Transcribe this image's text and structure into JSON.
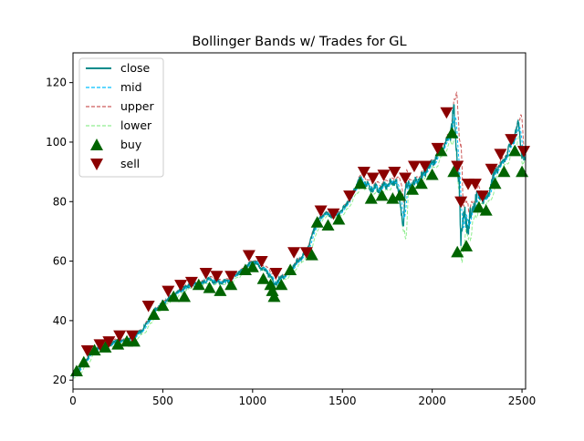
{
  "chart_data": {
    "type": "line",
    "title": "Bollinger Bands w/ Trades for GL",
    "xlabel": "",
    "ylabel": "",
    "xlim": [
      0,
      2520
    ],
    "ylim": [
      17,
      130
    ],
    "x_ticks": [
      0,
      500,
      1000,
      1500,
      2000,
      2500
    ],
    "x_tick_labels": [
      "0",
      "500",
      "1000",
      "1500",
      "2000",
      "2500"
    ],
    "y_ticks": [
      20,
      40,
      60,
      80,
      100,
      120
    ],
    "y_tick_labels": [
      "20",
      "40",
      "60",
      "80",
      "100",
      "120"
    ],
    "grid": false,
    "legend": {
      "placement": "top-left",
      "entries": [
        {
          "label": "close",
          "key": "close"
        },
        {
          "label": "mid",
          "key": "mid"
        },
        {
          "label": "upper",
          "key": "upper"
        },
        {
          "label": "lower",
          "key": "lower"
        },
        {
          "label": "buy",
          "key": "buy"
        },
        {
          "label": "sell",
          "key": "sell"
        }
      ]
    },
    "colors": {
      "close": "#008b8b",
      "mid": "#00bfff",
      "upper": "#cd5c5c",
      "lower": "#90ee90",
      "buy": "#006400",
      "sell": "#8b0000"
    },
    "close_path": {
      "x": [
        0,
        50,
        100,
        150,
        200,
        250,
        300,
        350,
        400,
        450,
        500,
        550,
        600,
        650,
        700,
        750,
        800,
        850,
        900,
        950,
        1000,
        1050,
        1100,
        1120,
        1150,
        1200,
        1250,
        1300,
        1350,
        1400,
        1450,
        1500,
        1550,
        1600,
        1620,
        1650,
        1700,
        1750,
        1800,
        1840,
        1850,
        1870,
        1900,
        1950,
        2000,
        2050,
        2100,
        2120,
        2130,
        2140,
        2150,
        2160,
        2170,
        2180,
        2200,
        2220,
        2250,
        2300,
        2350,
        2400,
        2450,
        2480,
        2500,
        2520
      ],
      "y": [
        21,
        25,
        29,
        31,
        32,
        33,
        33,
        35,
        38,
        43,
        46,
        48,
        50,
        52,
        52,
        54,
        53,
        53,
        55,
        57,
        60,
        58,
        55,
        52,
        54,
        56,
        60,
        63,
        72,
        76,
        75,
        77,
        82,
        88,
        86,
        85,
        84,
        86,
        87,
        72,
        84,
        86,
        86,
        89,
        93,
        97,
        103,
        110,
        102,
        94,
        88,
        65,
        72,
        78,
        70,
        77,
        82,
        80,
        90,
        94,
        100,
        106,
        96,
        93
      ]
    },
    "buy_signals": {
      "x": [
        20,
        60,
        120,
        180,
        250,
        300,
        340,
        450,
        500,
        560,
        620,
        700,
        760,
        820,
        880,
        960,
        1000,
        1060,
        1100,
        1110,
        1120,
        1160,
        1210,
        1330,
        1360,
        1420,
        1480,
        1600,
        1660,
        1720,
        1780,
        1820,
        1890,
        1940,
        2000,
        2050,
        2110,
        2120,
        2140,
        2190,
        2260,
        2300,
        2350,
        2400,
        2460,
        2500
      ],
      "y": [
        23,
        26,
        30,
        31,
        32,
        33,
        33,
        42,
        45,
        48,
        48,
        52,
        51,
        50,
        52,
        57,
        58,
        54,
        52,
        50,
        48,
        52,
        57,
        62,
        73,
        72,
        74,
        86,
        81,
        82,
        81,
        82,
        84,
        86,
        89,
        97,
        103,
        90,
        63,
        65,
        78,
        77,
        86,
        90,
        97,
        90
      ]
    },
    "sell_signals": {
      "x": [
        80,
        150,
        200,
        260,
        330,
        420,
        530,
        600,
        660,
        740,
        800,
        880,
        980,
        1050,
        1130,
        1230,
        1300,
        1380,
        1450,
        1540,
        1620,
        1670,
        1730,
        1790,
        1850,
        1900,
        1960,
        2030,
        2080,
        2140,
        2160,
        2200,
        2240,
        2280,
        2330,
        2380,
        2440,
        2510
      ],
      "y": [
        30,
        32,
        33,
        35,
        35,
        45,
        50,
        52,
        53,
        56,
        55,
        55,
        62,
        60,
        56,
        63,
        63,
        77,
        76,
        82,
        90,
        88,
        89,
        90,
        88,
        92,
        92,
        98,
        110,
        92,
        80,
        86,
        86,
        82,
        91,
        96,
        101,
        97
      ]
    }
  }
}
